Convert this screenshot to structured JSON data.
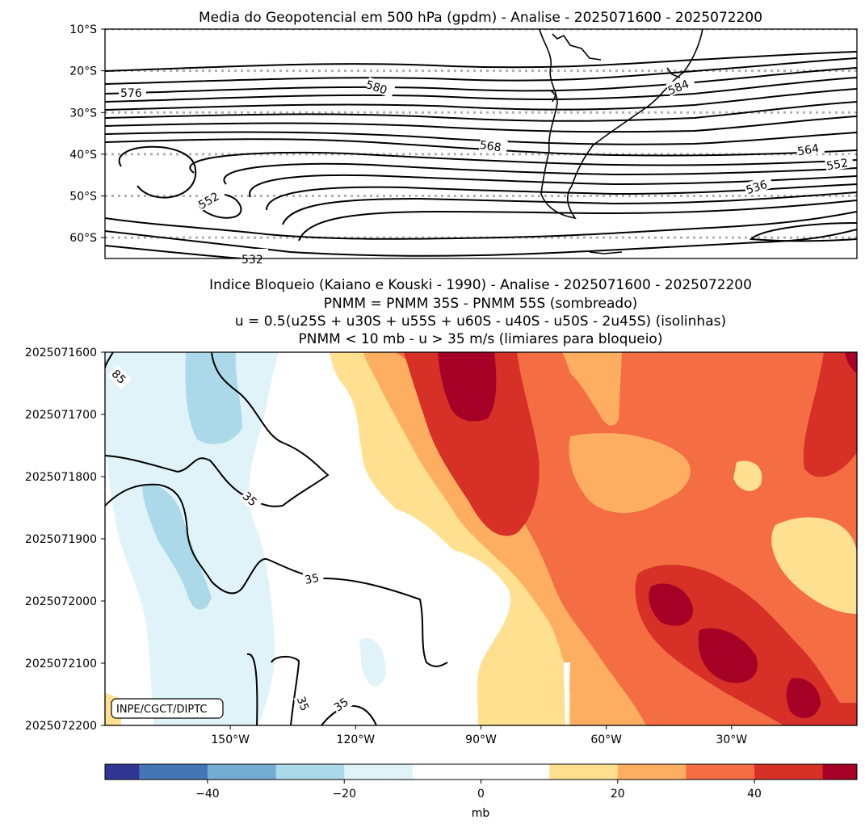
{
  "chart_data": [
    {
      "type": "contour",
      "title": "Media do Geopotencial em 500 hPa (gpdm) - Analise - 2025071600 - 2025072200",
      "ytick_labels": [
        "10°S",
        "20°S",
        "30°S",
        "40°S",
        "50°S",
        "60°S"
      ],
      "ylim_lat": [
        -65,
        -10
      ],
      "gridlines_lat": [
        -10,
        -20,
        -30,
        -40,
        -50,
        -60
      ],
      "contour_labels": [
        "576",
        "580",
        "584",
        "568",
        "564",
        "552",
        "536",
        "552",
        "532"
      ],
      "contour_interval": 4,
      "contour_range": [
        532,
        584
      ]
    },
    {
      "type": "heatmap",
      "title_lines": [
        "Indice Bloqueio (Kaiano e Kouski - 1990) - Analise - 2025071600 - 2025072200",
        "PNMM = PNMM 35S - PNMM 55S (sombreado)",
        "u = 0.5(u25S + u30S + u55S + u60S - u40S - u50S - 2u45S) (isolinhas)",
        "PNMM < 10 mb - u > 35 m/s (limiares para bloqueio)"
      ],
      "ytick_labels": [
        "2025071600",
        "2025071700",
        "2025071800",
        "2025071900",
        "2025072000",
        "2025072100",
        "2025072200"
      ],
      "xtick_values": [
        -150,
        -120,
        -90,
        -60,
        -30
      ],
      "xtick_labels": [
        "150°W",
        "120°W",
        "90°W",
        "60°W",
        "30°W"
      ],
      "xlim": [
        -180,
        0
      ],
      "isoline_labels": [
        "85",
        "35",
        "35",
        "35",
        "35"
      ],
      "credit": "INPE/CGCT/DIPTC"
    },
    {
      "type": "colorbar",
      "label": "mb",
      "range": [
        -55,
        55
      ],
      "boundaries": [
        -55,
        -50,
        -40,
        -30,
        -20,
        -10,
        10,
        20,
        30,
        40,
        50,
        55
      ],
      "colors": [
        "#313695",
        "#4575b4",
        "#74add1",
        "#abd9e9",
        "#e0f3f8",
        "#ffffff",
        "#fee090",
        "#fdae61",
        "#f46d43",
        "#d73027",
        "#a50026"
      ],
      "tick_values": [
        -40,
        -20,
        0,
        20,
        40
      ],
      "tick_labels": [
        "−40",
        "−20",
        "0",
        "20",
        "40"
      ]
    }
  ]
}
